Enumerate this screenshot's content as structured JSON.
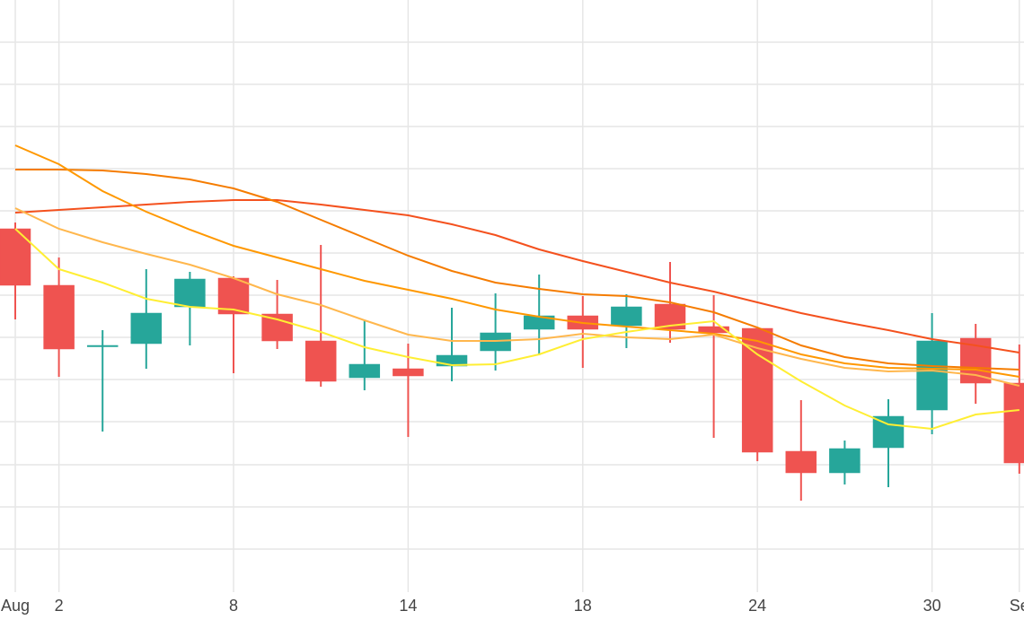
{
  "chart_data": {
    "type": "candlestick",
    "categories": [
      "Aug",
      "2",
      null,
      null,
      null,
      "8",
      null,
      null,
      null,
      "14",
      null,
      null,
      null,
      "18",
      null,
      null,
      null,
      "24",
      null,
      null,
      null,
      "30",
      null,
      "Se"
    ],
    "open": [
      405,
      342,
      274,
      277,
      318,
      350,
      310,
      280,
      239,
      249,
      252,
      269,
      293,
      308,
      297,
      321,
      296,
      294,
      157,
      133,
      161,
      203,
      283,
      233
    ],
    "high": [
      412,
      373,
      292,
      360,
      357,
      352,
      348,
      387,
      303,
      277,
      317,
      333,
      354,
      330,
      332,
      368,
      331,
      294,
      214,
      169,
      215,
      311,
      299,
      276
    ],
    "low": [
      304,
      240,
      179,
      249,
      275,
      244,
      271,
      229,
      225,
      173,
      235,
      247,
      264,
      250,
      272,
      278,
      172,
      146,
      102,
      120,
      117,
      176,
      210,
      132
    ],
    "close": [
      342,
      271,
      275,
      311,
      349,
      310,
      280,
      235,
      254,
      241,
      264,
      289,
      308,
      293,
      318,
      293,
      289,
      156,
      133,
      160,
      196,
      280,
      233,
      144
    ],
    "increasing_color": "#26a69a",
    "decreasing_color": "#ef5350",
    "series": [
      {
        "color": "#f4511e",
        "values": [
          423,
          426,
          429,
          432,
          435,
          437,
          437,
          432,
          426,
          420,
          410,
          398,
          382,
          369,
          357,
          345,
          335,
          323,
          311,
          301,
          292,
          282,
          275,
          267
        ]
      },
      {
        "color": "#f57c00",
        "values": [
          471,
          471,
          470,
          466,
          460,
          450,
          435,
          415,
          395,
          375,
          358,
          345,
          338,
          332,
          330,
          323,
          312,
          295,
          275,
          262,
          255,
          252,
          250,
          248
        ]
      },
      {
        "color": "#ff9800",
        "values": [
          498,
          477,
          447,
          424,
          404,
          386,
          373,
          360,
          347,
          337,
          327,
          315,
          307,
          300,
          296,
          292,
          288,
          280,
          265,
          255,
          250,
          249,
          248,
          240
        ]
      },
      {
        "color": "#ffb74d",
        "values": [
          428,
          405,
          390,
          377,
          365,
          350,
          332,
          320,
          303,
          287,
          280,
          280,
          282,
          288,
          284,
          282,
          287,
          272,
          260,
          250,
          246,
          247,
          242,
          230
        ]
      },
      {
        "color": "#ffee33",
        "values": [
          405,
          360,
          345,
          327,
          318,
          315,
          304,
          290,
          273,
          262,
          253,
          254,
          265,
          282,
          290,
          297,
          302,
          265,
          235,
          208,
          187,
          182,
          198,
          203
        ]
      }
    ],
    "ylim": [
      0,
      660
    ],
    "yticks": [
      48,
      95,
      142,
      190,
      237,
      284,
      331,
      378,
      425,
      472,
      519,
      566,
      613
    ],
    "ytick_labels": false,
    "grid": true
  }
}
